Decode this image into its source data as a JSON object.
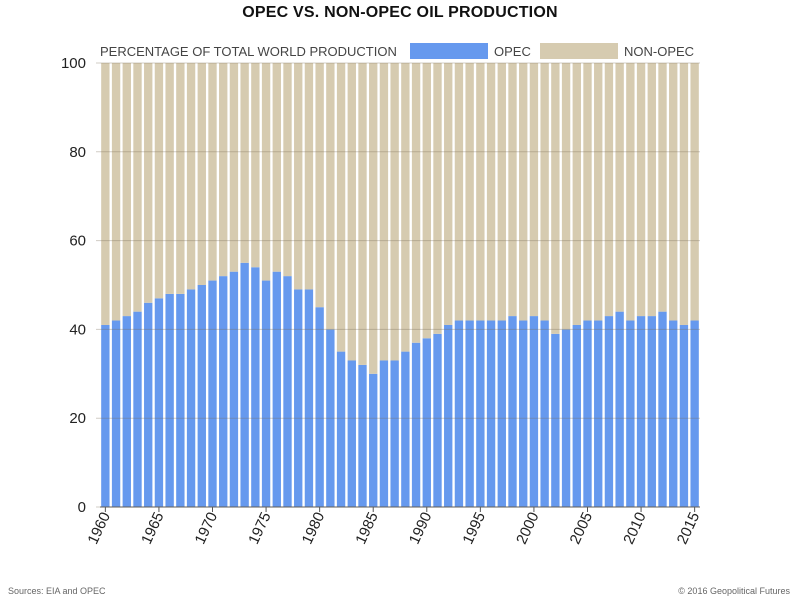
{
  "chart_data": {
    "type": "bar",
    "stacked": true,
    "title": "OPEC VS. NON-OPEC OIL PRODUCTION",
    "ylabel": "PERCENTAGE OF TOTAL WORLD PRODUCTION",
    "xlabel": "",
    "ylim": [
      0,
      100
    ],
    "yticks": [
      0,
      20,
      40,
      60,
      80,
      100
    ],
    "xticks": [
      "1960",
      "1965",
      "1970",
      "1975",
      "1980",
      "1985",
      "1990",
      "1995",
      "2000",
      "2005",
      "2010",
      "2015"
    ],
    "grid": true,
    "legend": "top-right",
    "categories": [
      "1960",
      "1961",
      "1962",
      "1963",
      "1964",
      "1965",
      "1966",
      "1967",
      "1968",
      "1969",
      "1970",
      "1971",
      "1972",
      "1973",
      "1974",
      "1975",
      "1976",
      "1977",
      "1978",
      "1979",
      "1980",
      "1981",
      "1982",
      "1983",
      "1984",
      "1985",
      "1986",
      "1987",
      "1988",
      "1989",
      "1990",
      "1991",
      "1992",
      "1993",
      "1994",
      "1995",
      "1996",
      "1997",
      "1998",
      "1999",
      "2000",
      "2001",
      "2002",
      "2003",
      "2004",
      "2005",
      "2006",
      "2007",
      "2008",
      "2009",
      "2010",
      "2011",
      "2012",
      "2013",
      "2014",
      "2015"
    ],
    "series": [
      {
        "name": "OPEC",
        "color": "#6699ee",
        "values": [
          41,
          42,
          43,
          44,
          46,
          47,
          48,
          48,
          49,
          50,
          51,
          52,
          53,
          55,
          54,
          51,
          53,
          52,
          49,
          49,
          45,
          40,
          35,
          33,
          32,
          30,
          33,
          33,
          35,
          37,
          38,
          39,
          41,
          42,
          42,
          42,
          42,
          42,
          43,
          42,
          43,
          42,
          39,
          40,
          41,
          42,
          42,
          43,
          44,
          42,
          43,
          43,
          44,
          42,
          41,
          42
        ]
      },
      {
        "name": "NON-OPEC",
        "color": "#d6cbb0",
        "values": [
          59,
          58,
          57,
          56,
          54,
          53,
          52,
          52,
          51,
          50,
          49,
          48,
          47,
          45,
          46,
          49,
          47,
          48,
          51,
          51,
          55,
          60,
          65,
          67,
          68,
          70,
          67,
          67,
          65,
          63,
          62,
          61,
          59,
          58,
          58,
          58,
          58,
          58,
          57,
          58,
          57,
          58,
          61,
          60,
          59,
          58,
          58,
          57,
          56,
          58,
          57,
          57,
          56,
          58,
          59,
          58
        ]
      }
    ]
  },
  "footer": {
    "source": "Sources: EIA and OPEC",
    "copyright": "© 2016 Geopolitical Futures"
  }
}
